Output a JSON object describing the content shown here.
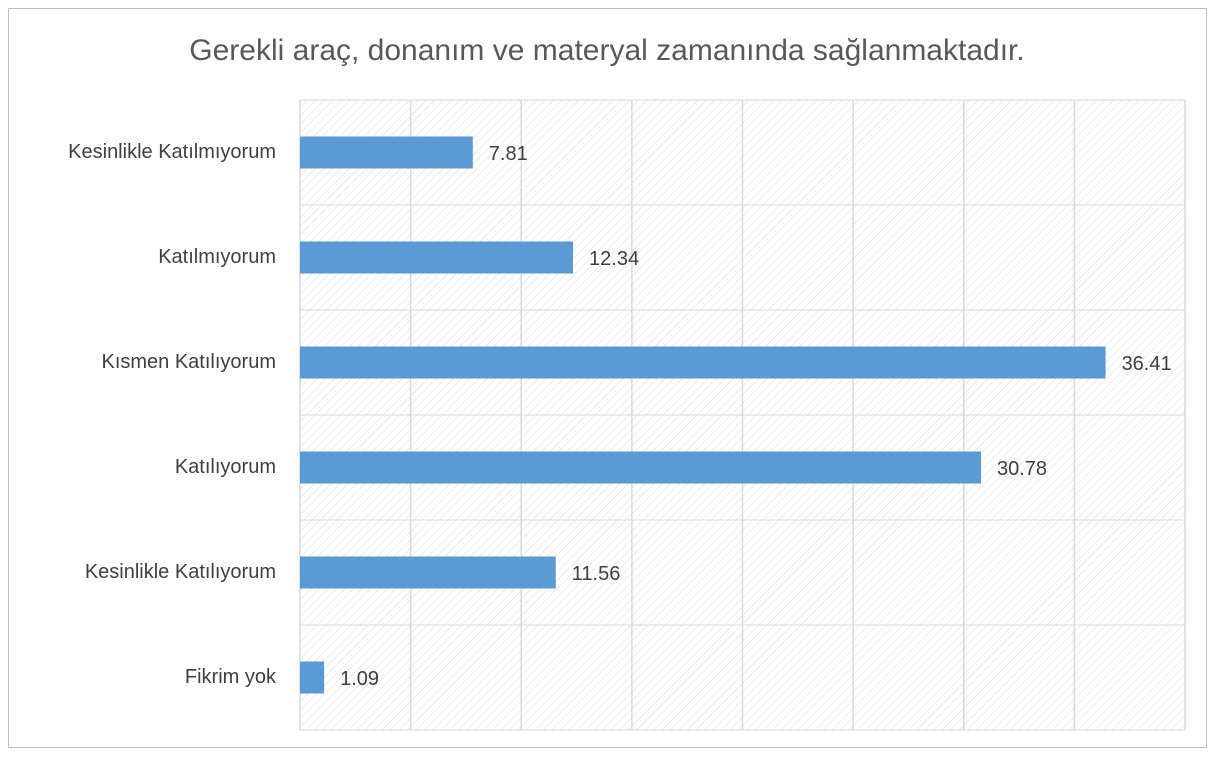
{
  "chart_data": {
    "type": "bar",
    "orientation": "horizontal",
    "title": "Gerekli araç, donanım ve materyal zamanında sağlanmaktadır.",
    "categories": [
      "Kesinlikle Katılmıyorum",
      "Katılmıyorum",
      "Kısmen Katılıyorum",
      "Katılıyorum",
      "Kesinlikle Katılıyorum",
      "Fikrim yok"
    ],
    "values": [
      7.81,
      12.34,
      36.41,
      30.78,
      11.56,
      1.09
    ],
    "color": "#5b9bd5",
    "xlim": [
      0,
      40
    ],
    "xticks": [
      0,
      5,
      10,
      15,
      20,
      25,
      30,
      35,
      40
    ],
    "grid": true
  }
}
